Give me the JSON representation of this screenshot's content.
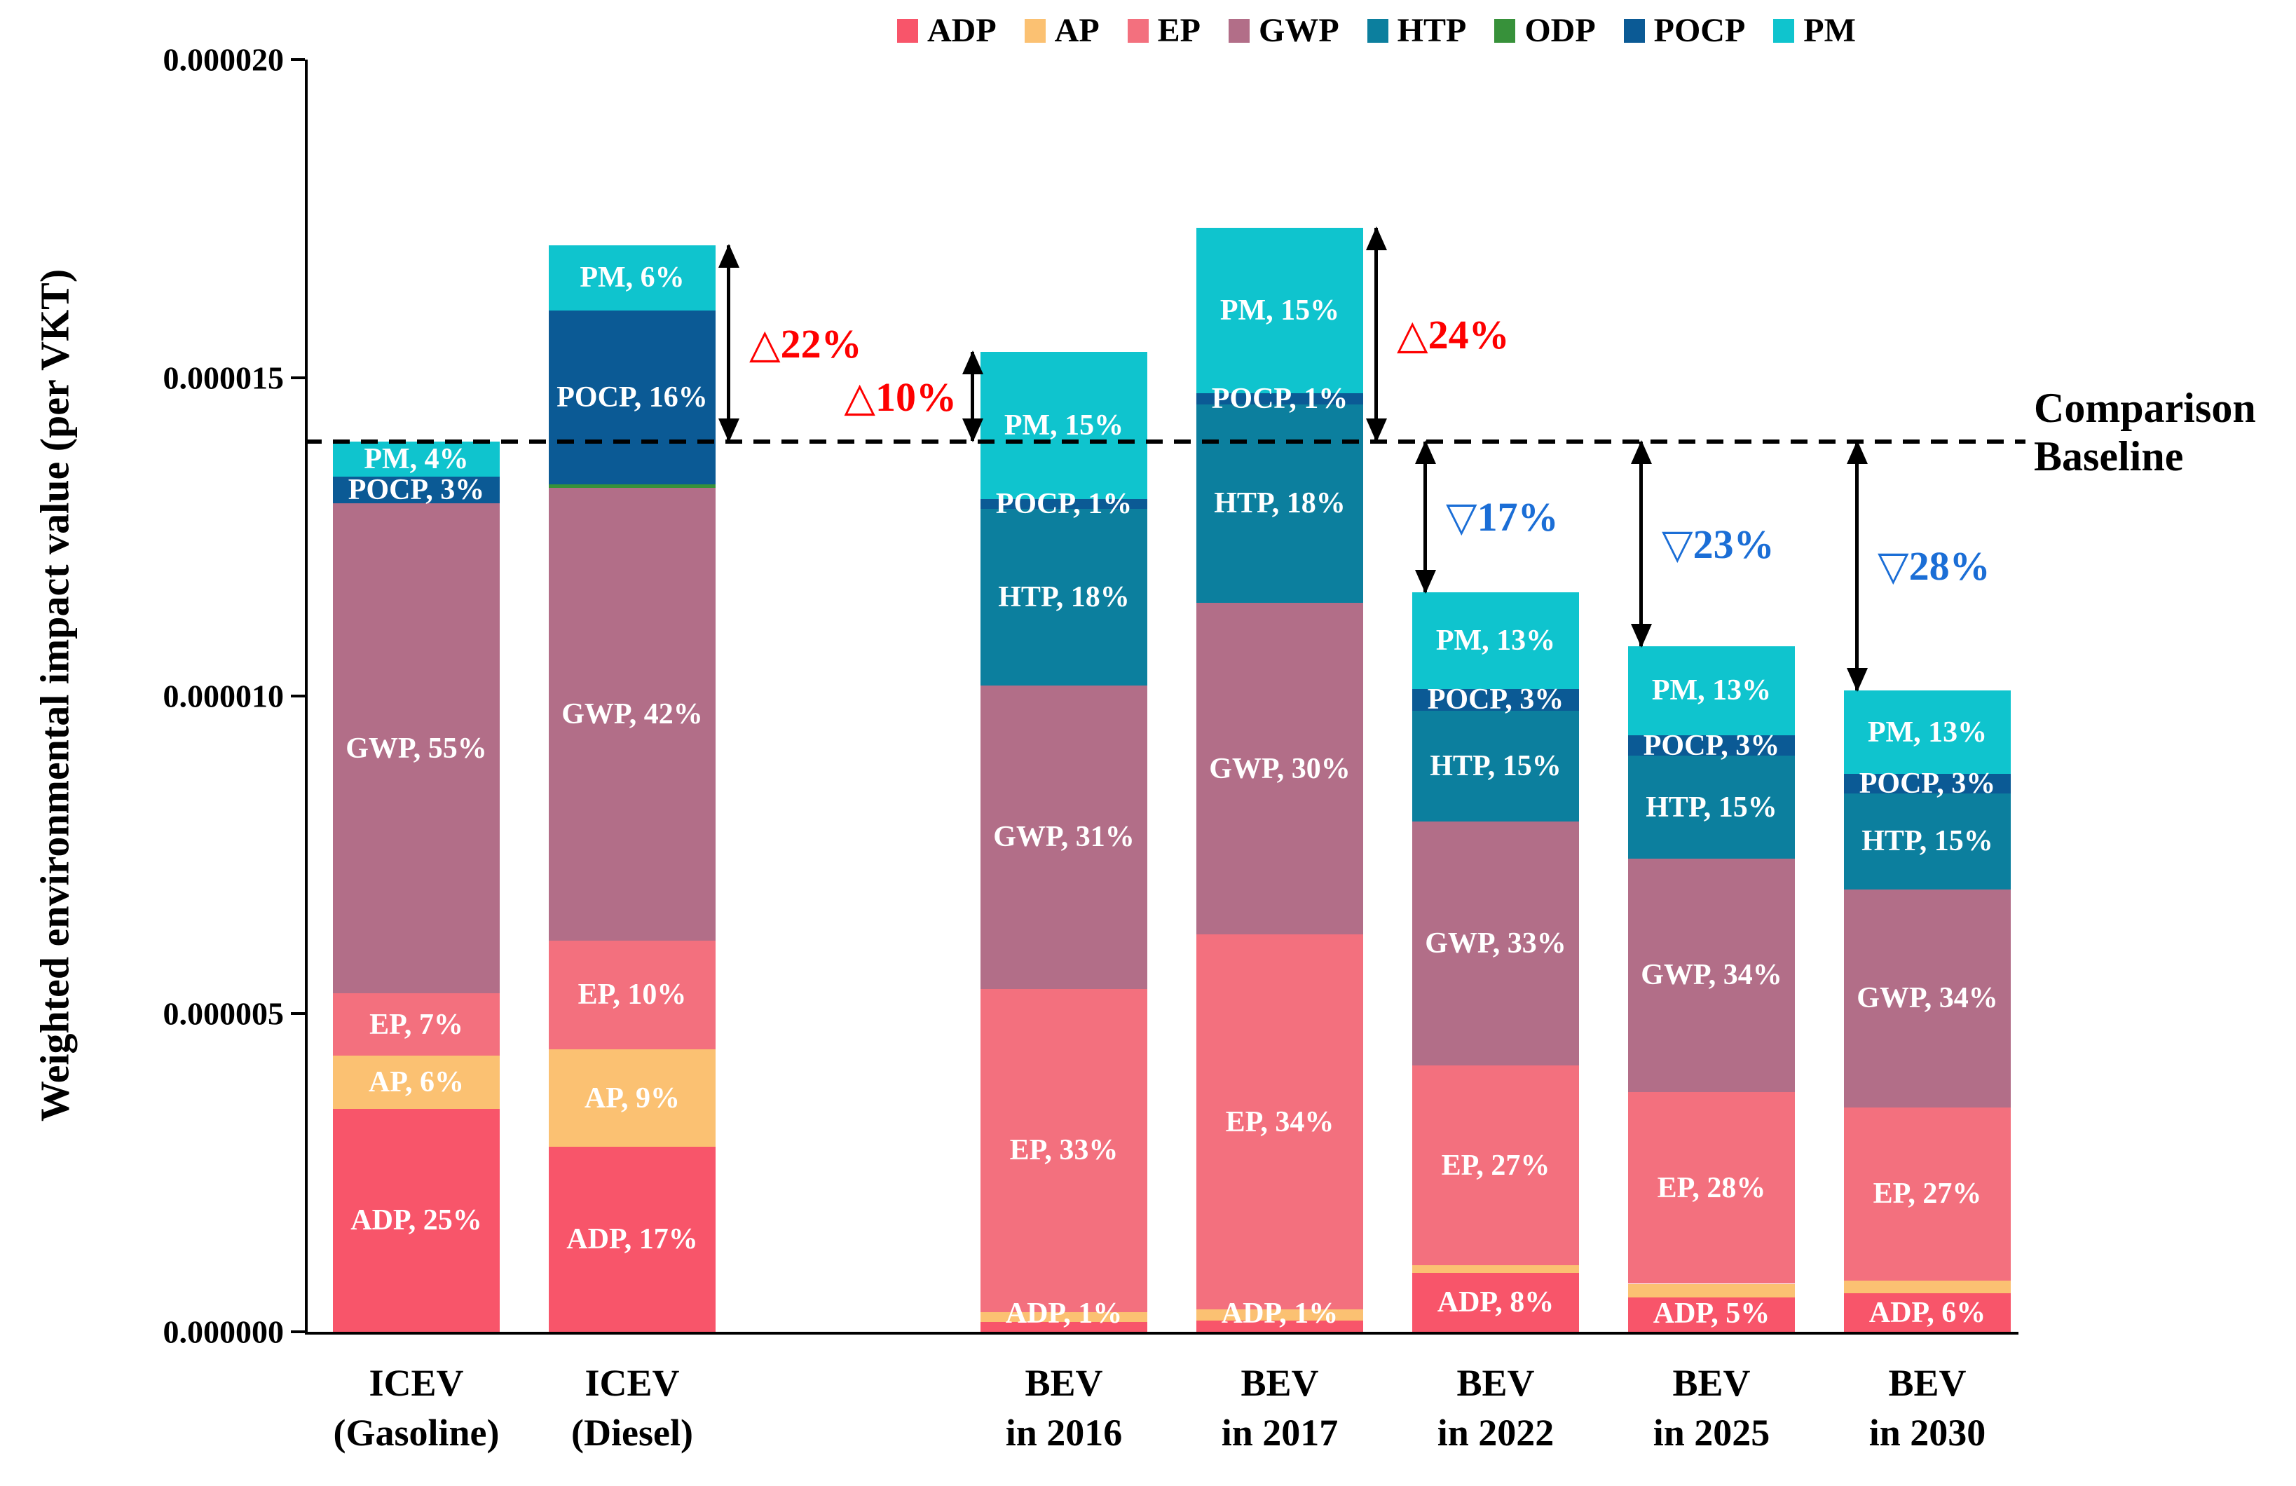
{
  "chart_data": {
    "type": "bar",
    "stacked": true,
    "title": "",
    "ylabel": "Weighted environmental impact value (per VKT)",
    "ylim": [
      0,
      2e-05
    ],
    "grid": false,
    "legend_position": "top",
    "y_ticks": [
      {
        "label": "0.000020",
        "value_e6": 20
      },
      {
        "label": "0.000015",
        "value_e6": 15
      },
      {
        "label": "0.000010",
        "value_e6": 10
      },
      {
        "label": "0.000005",
        "value_e6": 5
      },
      {
        "label": "0.000000",
        "value_e6": 0
      }
    ],
    "baseline": {
      "value_e6": 14,
      "lines": [
        "Comparison",
        "Baseline"
      ]
    },
    "series_order": [
      "ADP",
      "AP",
      "EP",
      "GWP",
      "HTP",
      "ODP",
      "POCP",
      "PM"
    ],
    "series_colors": {
      "ADP": "#F8556A",
      "AP": "#FBC172",
      "EP": "#F3707E",
      "GWP": "#B26E88",
      "HTP": "#0C7F9E",
      "ODP": "#37913A",
      "POCP": "#0B5A95",
      "PM": "#0FC4CE"
    },
    "annotation_colors": {
      "increase": "#FE0000",
      "decrease": "#1B6ED6"
    },
    "categories": [
      {
        "slot": 0,
        "label_lines": [
          "ICEV",
          "(Gasoline)"
        ],
        "total_e6": 14.0,
        "annotation": null,
        "segments": [
          {
            "name": "ADP",
            "pct": 25,
            "label": "ADP, 25%"
          },
          {
            "name": "AP",
            "pct": 6,
            "label": "AP, 6%"
          },
          {
            "name": "EP",
            "pct": 7,
            "label": "EP, 7%"
          },
          {
            "name": "GWP",
            "pct": 55,
            "label": "GWP, 55%"
          },
          {
            "name": "POCP",
            "pct": 3,
            "label": "POCP, 3%"
          },
          {
            "name": "PM",
            "pct": 4,
            "label": "PM, 4%"
          }
        ]
      },
      {
        "slot": 1,
        "label_lines": [
          "ICEV",
          "(Diesel)"
        ],
        "total_e6": 17.08,
        "annotation": {
          "text": "△22%",
          "delta_pct": 22,
          "dir": "up",
          "side": "right"
        },
        "segments": [
          {
            "name": "ADP",
            "pct": 17,
            "label": "ADP, 17%"
          },
          {
            "name": "AP",
            "pct": 9,
            "label": "AP, 9%"
          },
          {
            "name": "EP",
            "pct": 10,
            "label": "EP, 10%"
          },
          {
            "name": "GWP",
            "pct": 41.7,
            "label": "GWP, 42%"
          },
          {
            "name": "ODP",
            "pct": 0.3,
            "label": null
          },
          {
            "name": "POCP",
            "pct": 16,
            "label": "POCP, 16%"
          },
          {
            "name": "PM",
            "pct": 6,
            "label": "PM, 6%"
          }
        ]
      },
      {
        "slot": 3,
        "label_lines": [
          "BEV",
          "in 2016"
        ],
        "total_e6": 15.4,
        "annotation": {
          "text": "△10%",
          "delta_pct": 10,
          "dir": "up",
          "side": "left"
        },
        "segments": [
          {
            "name": "ADP",
            "pct": 1,
            "label": "ADP, 1%"
          },
          {
            "name": "AP",
            "pct": 1,
            "label": null
          },
          {
            "name": "EP",
            "pct": 33,
            "label": "EP, 33%"
          },
          {
            "name": "GWP",
            "pct": 31,
            "label": "GWP, 31%"
          },
          {
            "name": "HTP",
            "pct": 18,
            "label": "HTP, 18%"
          },
          {
            "name": "POCP",
            "pct": 1,
            "label": "POCP, 1%"
          },
          {
            "name": "PM",
            "pct": 15,
            "label": "PM, 15%"
          }
        ]
      },
      {
        "slot": 4,
        "label_lines": [
          "BEV",
          "in 2017"
        ],
        "total_e6": 17.36,
        "annotation": {
          "text": "△24%",
          "delta_pct": 24,
          "dir": "up",
          "side": "right"
        },
        "segments": [
          {
            "name": "ADP",
            "pct": 1,
            "label": "ADP, 1%"
          },
          {
            "name": "AP",
            "pct": 1,
            "label": null
          },
          {
            "name": "EP",
            "pct": 34,
            "label": "EP, 34%"
          },
          {
            "name": "GWP",
            "pct": 30,
            "label": "GWP, 30%"
          },
          {
            "name": "HTP",
            "pct": 18,
            "label": "HTP, 18%"
          },
          {
            "name": "POCP",
            "pct": 1,
            "label": "POCP, 1%"
          },
          {
            "name": "PM",
            "pct": 15,
            "label": "PM, 15%"
          }
        ]
      },
      {
        "slot": 5,
        "label_lines": [
          "BEV",
          "in 2022"
        ],
        "total_e6": 11.62,
        "annotation": {
          "text": "▽17%",
          "delta_pct": -17,
          "dir": "down",
          "side": "right"
        },
        "segments": [
          {
            "name": "ADP",
            "pct": 8,
            "label": "ADP, 8%"
          },
          {
            "name": "AP",
            "pct": 1,
            "label": null
          },
          {
            "name": "EP",
            "pct": 27,
            "label": "EP, 27%"
          },
          {
            "name": "GWP",
            "pct": 33,
            "label": "GWP, 33%"
          },
          {
            "name": "HTP",
            "pct": 15,
            "label": "HTP, 15%"
          },
          {
            "name": "POCP",
            "pct": 3,
            "label": "POCP, 3%"
          },
          {
            "name": "PM",
            "pct": 13,
            "label": "PM, 13%"
          }
        ]
      },
      {
        "slot": 6,
        "label_lines": [
          "BEV",
          "in 2025"
        ],
        "total_e6": 10.78,
        "annotation": {
          "text": "▽23%",
          "delta_pct": -23,
          "dir": "down",
          "side": "right"
        },
        "segments": [
          {
            "name": "ADP",
            "pct": 5,
            "label": "ADP, 5%"
          },
          {
            "name": "AP",
            "pct": 2,
            "label": null
          },
          {
            "name": "EP",
            "pct": 28,
            "label": "EP, 28%"
          },
          {
            "name": "GWP",
            "pct": 34,
            "label": "GWP, 34%"
          },
          {
            "name": "HTP",
            "pct": 15,
            "label": "HTP, 15%"
          },
          {
            "name": "POCP",
            "pct": 3,
            "label": "POCP, 3%"
          },
          {
            "name": "PM",
            "pct": 13,
            "label": "PM, 13%"
          }
        ]
      },
      {
        "slot": 7,
        "label_lines": [
          "BEV",
          "in 2030"
        ],
        "total_e6": 10.08,
        "annotation": {
          "text": "▽28%",
          "delta_pct": -28,
          "dir": "down",
          "side": "right"
        },
        "segments": [
          {
            "name": "ADP",
            "pct": 6,
            "label": "ADP, 6%"
          },
          {
            "name": "AP",
            "pct": 2,
            "label": null
          },
          {
            "name": "EP",
            "pct": 27,
            "label": "EP, 27%"
          },
          {
            "name": "GWP",
            "pct": 34,
            "label": "GWP, 34%"
          },
          {
            "name": "HTP",
            "pct": 15,
            "label": "HTP, 15%"
          },
          {
            "name": "POCP",
            "pct": 3,
            "label": "POCP, 3%"
          },
          {
            "name": "PM",
            "pct": 13,
            "label": "PM, 13%"
          }
        ]
      }
    ]
  }
}
